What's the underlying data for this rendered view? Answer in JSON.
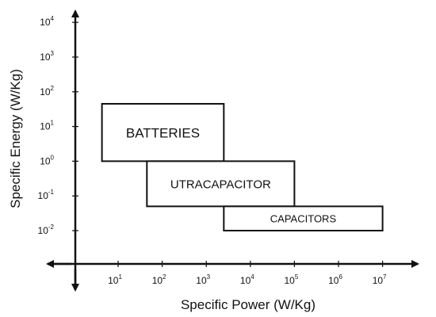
{
  "chart_data": {
    "type": "region",
    "xlabel": "Specific Power (W/Kg)",
    "ylabel": "Specific Energy (W/Kg)",
    "x_scale": "log",
    "y_scale": "log",
    "x_ticks": [
      {
        "base": "10",
        "exp": "1",
        "value": 10
      },
      {
        "base": "10",
        "exp": "2",
        "value": 100
      },
      {
        "base": "10",
        "exp": "3",
        "value": 1000
      },
      {
        "base": "10",
        "exp": "4",
        "value": 10000
      },
      {
        "base": "10",
        "exp": "5",
        "value": 100000
      },
      {
        "base": "10",
        "exp": "6",
        "value": 1000000
      },
      {
        "base": "10",
        "exp": "7",
        "value": 10000000
      }
    ],
    "y_ticks": [
      {
        "base": "10",
        "exp": "-2",
        "value": 0.01
      },
      {
        "base": "10",
        "exp": "-1",
        "value": 0.1
      },
      {
        "base": "10",
        "exp": "0",
        "value": 1
      },
      {
        "base": "10",
        "exp": "1",
        "value": 10
      },
      {
        "base": "10",
        "exp": "2",
        "value": 100
      },
      {
        "base": "10",
        "exp": "3",
        "value": 1000
      },
      {
        "base": "10",
        "exp": "4",
        "value": 10000
      }
    ],
    "regions": [
      {
        "label": "BATTERIES",
        "x_range": [
          4.3,
          2500
        ],
        "y_range": [
          1,
          45
        ]
      },
      {
        "label": "UTRACAPACITOR",
        "x_range": [
          45,
          100000
        ],
        "y_range": [
          0.05,
          1
        ]
      },
      {
        "label": "CAPACITORS",
        "x_range": [
          2500,
          10000000
        ],
        "y_range": [
          0.01,
          0.05
        ]
      }
    ],
    "grid": false,
    "legend": "none"
  }
}
